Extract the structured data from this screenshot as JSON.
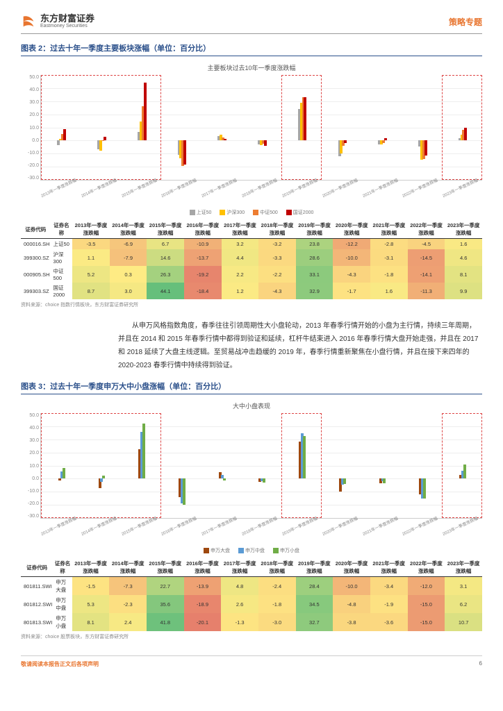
{
  "header": {
    "logo_cn": "东方财富证券",
    "logo_en": "Eastmoney Securities",
    "topic": "策略专题"
  },
  "chart2": {
    "title": "图表 2：过去十年一季度主要板块涨幅（单位：百分比）",
    "subtitle": "主要板块过去10年一季度涨跌幅",
    "yticks": [
      "50.0",
      "40.0",
      "30.0",
      "20.0",
      "10.0",
      "0.0",
      "-10.0",
      "-20.0",
      "-30.0"
    ],
    "ylim": [
      -30,
      50
    ],
    "zero_pct": 62.5,
    "colors": [
      "#a6a6a6",
      "#ffc000",
      "#ed7d31",
      "#c00000"
    ],
    "legend": [
      "上证50",
      "沪深300",
      "中证500",
      "国证2000"
    ],
    "years": [
      "2013年一季度涨跌幅",
      "2014年一季度涨跌幅",
      "2015年一季度涨跌幅",
      "2016年一季度涨跌幅",
      "2017年一季度涨跌幅",
      "2018年一季度涨跌幅",
      "2019年一季度涨跌幅",
      "2020年一季度涨跌幅",
      "2021年一季度涨跌幅",
      "2022年一季度涨跌幅",
      "2023年一季度涨跌幅"
    ],
    "data": [
      [
        -3.5,
        1.1,
        5.2,
        8.7
      ],
      [
        -6.9,
        -7.9,
        0.3,
        3.0
      ],
      [
        6.7,
        14.6,
        26.3,
        44.1
      ],
      [
        -10.9,
        -13.7,
        -19.2,
        -18.4
      ],
      [
        3.2,
        4.4,
        2.2,
        1.2
      ],
      [
        -3.2,
        -3.3,
        -2.2,
        -4.3
      ],
      [
        23.8,
        28.6,
        33.1,
        32.9
      ],
      [
        -12.2,
        -10.0,
        -4.3,
        -1.7
      ],
      [
        -2.8,
        -3.1,
        -1.8,
        1.6
      ],
      [
        -4.5,
        -14.5,
        -14.1,
        -11.3
      ],
      [
        1.6,
        4.6,
        8.1,
        9.9
      ]
    ],
    "highlights": [
      {
        "start": 0,
        "end": 3
      },
      {
        "start": 6,
        "end": 7
      },
      {
        "start": 10,
        "end": 11
      }
    ],
    "table": {
      "headers": [
        "证券代码",
        "证券名称",
        "2013年一季度涨跌幅",
        "2014年一季度涨跌幅",
        "2015年一季度涨跌幅",
        "2016年一季度涨跌幅",
        "2017年一季度涨跌幅",
        "2018年一季度涨跌幅",
        "2019年一季度涨跌幅",
        "2020年一季度涨跌幅",
        "2021年一季度涨跌幅",
        "2022年一季度涨跌幅",
        "2023年一季度涨跌幅"
      ],
      "rows": [
        [
          "000016.SH",
          "上证50",
          "-3.5",
          "-6.9",
          "6.7",
          "-10.9",
          "3.2",
          "-3.2",
          "23.8",
          "-12.2",
          "-2.8",
          "-4.5",
          "1.6"
        ],
        [
          "399300.SZ",
          "沪深300",
          "1.1",
          "-7.9",
          "14.6",
          "-13.7",
          "4.4",
          "-3.3",
          "28.6",
          "-10.0",
          "-3.1",
          "-14.5",
          "4.6"
        ],
        [
          "000905.SH",
          "中证500",
          "5.2",
          "0.3",
          "26.3",
          "-19.2",
          "2.2",
          "-2.2",
          "33.1",
          "-4.3",
          "-1.8",
          "-14.1",
          "8.1"
        ],
        [
          "399303.SZ",
          "国证2000",
          "8.7",
          "3.0",
          "44.1",
          "-18.4",
          "1.2",
          "-4.3",
          "32.9",
          "-1.7",
          "1.6",
          "-11.3",
          "9.9"
        ]
      ]
    },
    "source": "资料来源：choice 指数行情板块，东方财富证券研究所"
  },
  "paragraph": "从申万风格指数角度，春季往往引领周期性大小盘轮动，2013 年春季行情开始的小盘为主行情，持续三年周期，并且在 2014 和 2015 年春季行情中都得到验证和延续，杠杆牛结束进入 2016 年春季行情大盘开始走强，并且在 2017 和 2018 延续了大盘主线逻辑。至贸易战冲击趋缓的 2019 年，春季行情重新聚焦在小盘行情，并且在接下来四年的 2020-2023 春季行情中持续得到验证。",
  "chart3": {
    "title": "图表 3：过去十年一季度申万大中小盘涨幅（单位：百分比）",
    "subtitle": "大中小盘表现",
    "yticks": [
      "50.0",
      "40.0",
      "30.0",
      "20.0",
      "10.0",
      "0.0",
      "-10.0",
      "-20.0",
      "-30.0"
    ],
    "ylim": [
      -30,
      50
    ],
    "zero_pct": 62.5,
    "colors": [
      "#9e480e",
      "#5b9bd5",
      "#70ad47"
    ],
    "legend": [
      "申万大盘",
      "申万中盘",
      "申万小盘"
    ],
    "years": [
      "2013年一季度涨跌幅",
      "2014年一季度涨跌幅",
      "2015年一季度涨跌幅",
      "2016年一季度涨跌幅",
      "2017年一季度涨跌幅",
      "2018年一季度涨跌幅",
      "2019年一季度涨跌幅",
      "2020年一季度涨跌幅",
      "2021年一季度涨跌幅",
      "2022年一季度涨跌幅",
      "2023年一季度涨跌幅"
    ],
    "data": [
      [
        -1.5,
        5.3,
        8.1
      ],
      [
        -7.3,
        -2.3,
        2.4
      ],
      [
        22.7,
        35.6,
        41.8
      ],
      [
        -13.9,
        -18.9,
        -20.1
      ],
      [
        4.8,
        2.6,
        -1.3
      ],
      [
        -2.4,
        -1.8,
        -3.0
      ],
      [
        28.4,
        34.5,
        32.7
      ],
      [
        -10.0,
        -4.8,
        -3.8
      ],
      [
        -3.4,
        -1.9,
        -3.6
      ],
      [
        -12.0,
        -15.0,
        -15.0
      ],
      [
        3.1,
        6.2,
        10.7
      ]
    ],
    "highlights": [
      {
        "start": 0,
        "end": 3
      },
      {
        "start": 6,
        "end": 7
      },
      {
        "start": 10,
        "end": 11
      }
    ],
    "table": {
      "headers": [
        "证券代码",
        "证券名称",
        "2013年一季度涨跌幅",
        "2014年一季度涨跌幅",
        "2015年一季度涨跌幅",
        "2016年一季度涨跌幅",
        "2017年一季度涨跌幅",
        "2018年一季度涨跌幅",
        "2019年一季度涨跌幅",
        "2020年一季度涨跌幅",
        "2021年一季度涨跌幅",
        "2022年一季度涨跌幅",
        "2023年一季度涨跌幅"
      ],
      "rows": [
        [
          "801811.SWI",
          "申万大盘",
          "-1.5",
          "-7.3",
          "22.7",
          "-13.9",
          "4.8",
          "-2.4",
          "28.4",
          "-10.0",
          "-3.4",
          "-12.0",
          "3.1"
        ],
        [
          "801812.SWI",
          "申万中盘",
          "5.3",
          "-2.3",
          "35.6",
          "-18.9",
          "2.6",
          "-1.8",
          "34.5",
          "-4.8",
          "-1.9",
          "-15.0",
          "6.2"
        ],
        [
          "801813.SWI",
          "申万小盘",
          "8.1",
          "2.4",
          "41.8",
          "-20.1",
          "-1.3",
          "-3.0",
          "32.7",
          "-3.8",
          "-3.6",
          "-15.0",
          "10.7"
        ]
      ]
    },
    "source": "资料来源：choice 股票板块，东方财富证券研究所"
  },
  "footer": {
    "left": "敬请阅读本报告正文后各项声明",
    "page": "6"
  },
  "heatmap": {
    "min": -25,
    "max": 45,
    "neg": "#e06666",
    "zero": "#ffeb84",
    "pos": "#63be7b"
  }
}
